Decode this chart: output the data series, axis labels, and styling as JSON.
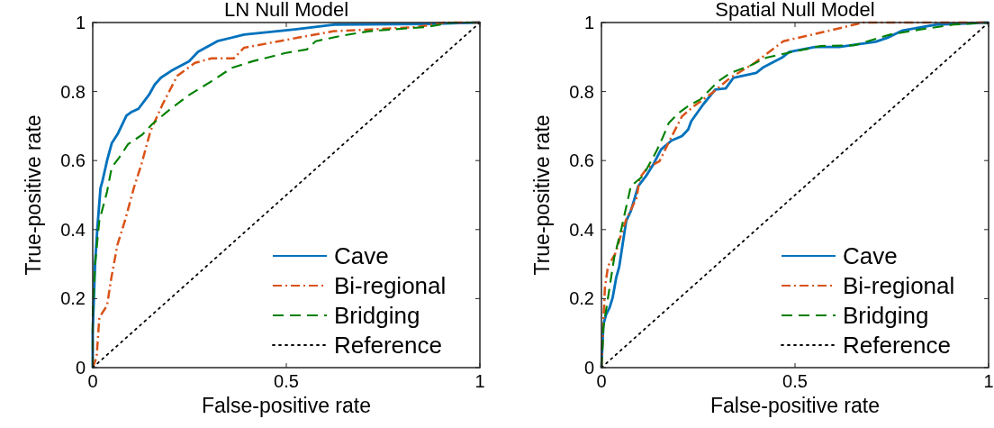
{
  "chart_data": [
    {
      "type": "line",
      "title": "LN Null Model",
      "xlabel": "False-positive rate",
      "ylabel": "True-positive rate",
      "xlim": [
        0,
        1
      ],
      "ylim": [
        0,
        1
      ],
      "xticks": [
        0,
        0.5,
        1
      ],
      "yticks": [
        0,
        0.2,
        0.4,
        0.6,
        0.8,
        1
      ],
      "grid": false,
      "legend": "bottom right",
      "marker": "none",
      "series": [
        {
          "name": "Cave",
          "color": "#0072bd",
          "line_style": "solid",
          "x": [
            0,
            0,
            0.006,
            0.012,
            0.02,
            0.025,
            0.037,
            0.049,
            0.064,
            0.087,
            0.099,
            0.118,
            0.145,
            0.16,
            0.176,
            0.203,
            0.249,
            0.272,
            0.322,
            0.391,
            0.522,
            0.623,
            0.869,
            1
          ],
          "values": [
            0,
            0.106,
            0.3,
            0.405,
            0.52,
            0.54,
            0.6,
            0.65,
            0.676,
            0.73,
            0.74,
            0.75,
            0.79,
            0.82,
            0.84,
            0.86,
            0.888,
            0.915,
            0.946,
            0.965,
            0.98,
            0.994,
            0.996,
            1
          ]
        },
        {
          "name": "Bi-regional",
          "color": "#d95319",
          "line_style": "dashdot",
          "x": [
            0,
            0.01,
            0.017,
            0.037,
            0.048,
            0.064,
            0.083,
            0.106,
            0.126,
            0.149,
            0.18,
            0.218,
            0.264,
            0.307,
            0.364,
            0.391,
            0.53,
            0.623,
            0.715,
            0.838,
            0.908,
            1
          ],
          "values": [
            0,
            0.03,
            0.145,
            0.18,
            0.26,
            0.357,
            0.425,
            0.52,
            0.59,
            0.685,
            0.762,
            0.845,
            0.883,
            0.896,
            0.896,
            0.927,
            0.956,
            0.975,
            0.98,
            0.987,
            1,
            1
          ]
        },
        {
          "name": "Bridging",
          "color": "#008000",
          "line_style": "dashed",
          "x": [
            0,
            0,
            0.006,
            0.017,
            0.037,
            0.049,
            0.068,
            0.091,
            0.129,
            0.153,
            0.199,
            0.249,
            0.307,
            0.36,
            0.414,
            0.499,
            0.553,
            0.576,
            0.639,
            0.715,
            0.861,
            0.93,
            1
          ],
          "values": [
            0,
            0.154,
            0.3,
            0.425,
            0.51,
            0.58,
            0.608,
            0.647,
            0.676,
            0.705,
            0.748,
            0.79,
            0.83,
            0.869,
            0.888,
            0.912,
            0.922,
            0.946,
            0.961,
            0.975,
            0.987,
            1,
            1
          ]
        },
        {
          "name": "Reference",
          "color": "#000000",
          "line_style": "dotted",
          "x": [
            0,
            1
          ],
          "values": [
            0,
            1
          ]
        }
      ]
    },
    {
      "type": "line",
      "title": "Spatial Null Model",
      "xlabel": "False-positive rate",
      "ylabel": "True-positive rate",
      "xlim": [
        0,
        1
      ],
      "ylim": [
        0,
        1
      ],
      "xticks": [
        0,
        0.5,
        1
      ],
      "yticks": [
        0,
        0.2,
        0.4,
        0.6,
        0.8,
        1
      ],
      "grid": false,
      "legend": "bottom right",
      "marker": "none",
      "series": [
        {
          "name": "Cave",
          "color": "#0072bd",
          "line_style": "solid",
          "x": [
            0,
            0.005,
            0.012,
            0.021,
            0.029,
            0.038,
            0.046,
            0.056,
            0.064,
            0.076,
            0.095,
            0.115,
            0.134,
            0.154,
            0.181,
            0.208,
            0.224,
            0.232,
            0.263,
            0.294,
            0.321,
            0.341,
            0.4,
            0.419,
            0.466,
            0.485,
            0.552,
            0.614,
            0.708,
            0.739,
            0.778,
            0.864,
            1
          ],
          "values": [
            0,
            0.125,
            0.154,
            0.174,
            0.203,
            0.26,
            0.293,
            0.367,
            0.425,
            0.454,
            0.526,
            0.555,
            0.589,
            0.632,
            0.658,
            0.671,
            0.69,
            0.714,
            0.763,
            0.806,
            0.809,
            0.84,
            0.854,
            0.871,
            0.898,
            0.915,
            0.929,
            0.929,
            0.944,
            0.956,
            0.977,
            0.994,
            1
          ]
        },
        {
          "name": "Bi-regional",
          "color": "#d95319",
          "line_style": "dashdot",
          "x": [
            0,
            0.004,
            0.009,
            0.017,
            0.037,
            0.048,
            0.064,
            0.091,
            0.099,
            0.119,
            0.15,
            0.177,
            0.208,
            0.239,
            0.286,
            0.333,
            0.396,
            0.47,
            0.583,
            0.676,
            1
          ],
          "values": [
            0,
            0.106,
            0.232,
            0.294,
            0.333,
            0.376,
            0.429,
            0.492,
            0.55,
            0.579,
            0.598,
            0.66,
            0.728,
            0.758,
            0.796,
            0.84,
            0.883,
            0.946,
            0.975,
            1,
            1
          ]
        },
        {
          "name": "Bridging",
          "color": "#008000",
          "line_style": "dashed",
          "x": [
            0,
            0.005,
            0.017,
            0.033,
            0.052,
            0.076,
            0.107,
            0.142,
            0.158,
            0.174,
            0.2,
            0.224,
            0.255,
            0.302,
            0.333,
            0.38,
            0.426,
            0.481,
            0.567,
            0.653,
            0.746,
            0.824,
            0.91,
            1
          ],
          "values": [
            0,
            0.116,
            0.203,
            0.319,
            0.405,
            0.526,
            0.555,
            0.627,
            0.666,
            0.709,
            0.738,
            0.758,
            0.777,
            0.83,
            0.854,
            0.873,
            0.898,
            0.912,
            0.932,
            0.934,
            0.965,
            0.98,
            0.994,
            1
          ]
        },
        {
          "name": "Reference",
          "color": "#000000",
          "line_style": "dotted",
          "x": [
            0,
            1
          ],
          "values": [
            0,
            1
          ]
        }
      ]
    }
  ]
}
